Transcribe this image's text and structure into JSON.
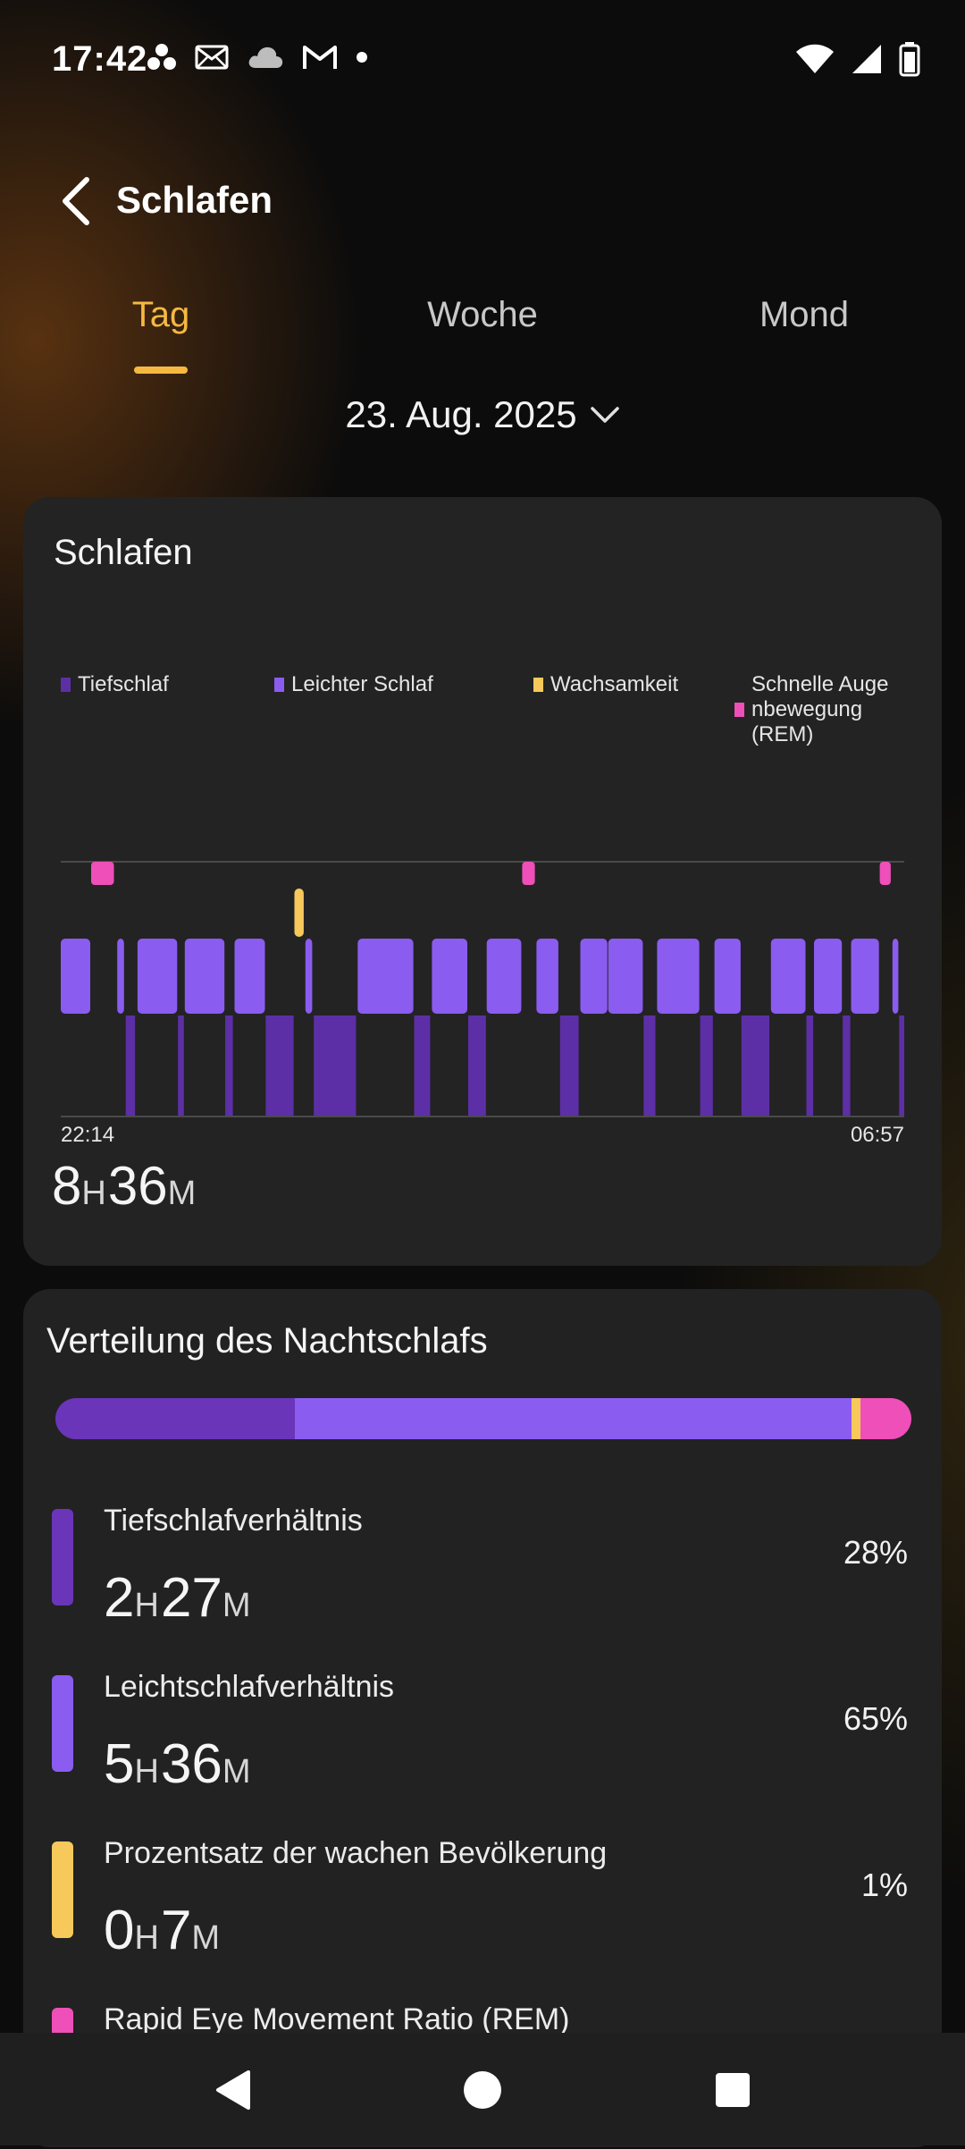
{
  "status_bar": {
    "time": "17:42"
  },
  "header": {
    "title": "Schlafen"
  },
  "tabs": [
    {
      "label": "Tag",
      "active": true
    },
    {
      "label": "Woche",
      "active": false
    },
    {
      "label": "Mond",
      "active": false
    }
  ],
  "date": {
    "label": "23. Aug. 2025"
  },
  "sleep_card": {
    "title": "Schlafen",
    "legend": [
      {
        "label": "Tiefschlaf",
        "color": "#5d2fa6"
      },
      {
        "label": "Leichter Schlaf",
        "color": "#8b5cf0"
      },
      {
        "label": "Wachsamkeit",
        "color": "#f7c85a"
      },
      {
        "label": "Schnelle Auge nbewegung (REM)",
        "color": "#ee4fb8"
      }
    ],
    "start_time": "22:14",
    "end_time": "06:57",
    "total": {
      "h": "8",
      "h_unit": "H",
      "m": "36",
      "m_unit": "M"
    }
  },
  "distribution": {
    "title": "Verteilung des Nachtschlafs",
    "bar": [
      {
        "stage": "deep",
        "percent": 28,
        "color": "#6a35b8"
      },
      {
        "stage": "light",
        "percent": 65,
        "color": "#8b5cf0"
      },
      {
        "stage": "awake",
        "percent": 1,
        "color": "#f7c85a"
      },
      {
        "stage": "rem",
        "percent": 6,
        "color": "#ee4fb8"
      }
    ],
    "rows": [
      {
        "label": "Tiefschlafverhältnis",
        "h": "2",
        "m": "27",
        "percent": "28%",
        "color": "#6a35b8"
      },
      {
        "label": "Leichtschlafverhältnis",
        "h": "5",
        "m": "36",
        "percent": "65%",
        "color": "#8b5cf0"
      },
      {
        "label": "Prozentsatz der wachen Bevölkerung",
        "h": "0",
        "m": "7",
        "percent": "1%",
        "color": "#f7c85a"
      },
      {
        "label": "Rapid Eye Movement Ratio (REM)",
        "h": "",
        "m": "",
        "percent": "",
        "color": "#ee4fb8"
      }
    ],
    "h_unit": "H",
    "m_unit": "M"
  },
  "chart_data": {
    "type": "sleep-stage-timeline",
    "x_range": [
      "22:14",
      "06:57"
    ],
    "stages": [
      "REM",
      "Wachsamkeit",
      "Leichter Schlaf",
      "Tiefschlaf"
    ],
    "segments": [
      {
        "stage": "light",
        "start": 0.0,
        "end": 0.035
      },
      {
        "stage": "rem",
        "start": 0.036,
        "end": 0.063
      },
      {
        "stage": "light",
        "start": 0.067,
        "end": 0.075
      },
      {
        "stage": "deep",
        "start": 0.077,
        "end": 0.088
      },
      {
        "stage": "light",
        "start": 0.091,
        "end": 0.138
      },
      {
        "stage": "deep",
        "start": 0.139,
        "end": 0.146
      },
      {
        "stage": "light",
        "start": 0.147,
        "end": 0.194
      },
      {
        "stage": "deep",
        "start": 0.195,
        "end": 0.204
      },
      {
        "stage": "light",
        "start": 0.206,
        "end": 0.242
      },
      {
        "stage": "deep",
        "start": 0.243,
        "end": 0.276
      },
      {
        "stage": "awake",
        "start": 0.277,
        "end": 0.288
      },
      {
        "stage": "light",
        "start": 0.29,
        "end": 0.298
      },
      {
        "stage": "deep",
        "start": 0.3,
        "end": 0.35
      },
      {
        "stage": "light",
        "start": 0.352,
        "end": 0.418
      },
      {
        "stage": "deep",
        "start": 0.419,
        "end": 0.438
      },
      {
        "stage": "light",
        "start": 0.44,
        "end": 0.482
      },
      {
        "stage": "deep",
        "start": 0.483,
        "end": 0.504
      },
      {
        "stage": "light",
        "start": 0.505,
        "end": 0.546
      },
      {
        "stage": "rem",
        "start": 0.547,
        "end": 0.562
      },
      {
        "stage": "light",
        "start": 0.564,
        "end": 0.59
      },
      {
        "stage": "deep",
        "start": 0.592,
        "end": 0.614
      },
      {
        "stage": "light",
        "start": 0.616,
        "end": 0.648
      },
      {
        "stage": "light",
        "start": 0.649,
        "end": 0.69
      },
      {
        "stage": "deep",
        "start": 0.691,
        "end": 0.705
      },
      {
        "stage": "light",
        "start": 0.707,
        "end": 0.757
      },
      {
        "stage": "deep",
        "start": 0.758,
        "end": 0.773
      },
      {
        "stage": "light",
        "start": 0.775,
        "end": 0.806
      },
      {
        "stage": "deep",
        "start": 0.807,
        "end": 0.84
      },
      {
        "stage": "light",
        "start": 0.842,
        "end": 0.883
      },
      {
        "stage": "deep",
        "start": 0.884,
        "end": 0.892
      },
      {
        "stage": "light",
        "start": 0.893,
        "end": 0.926
      },
      {
        "stage": "deep",
        "start": 0.927,
        "end": 0.936
      },
      {
        "stage": "light",
        "start": 0.937,
        "end": 0.97
      },
      {
        "stage": "rem",
        "start": 0.971,
        "end": 0.984
      },
      {
        "stage": "light",
        "start": 0.986,
        "end": 0.993
      },
      {
        "stage": "deep",
        "start": 0.994,
        "end": 1.0
      }
    ]
  }
}
